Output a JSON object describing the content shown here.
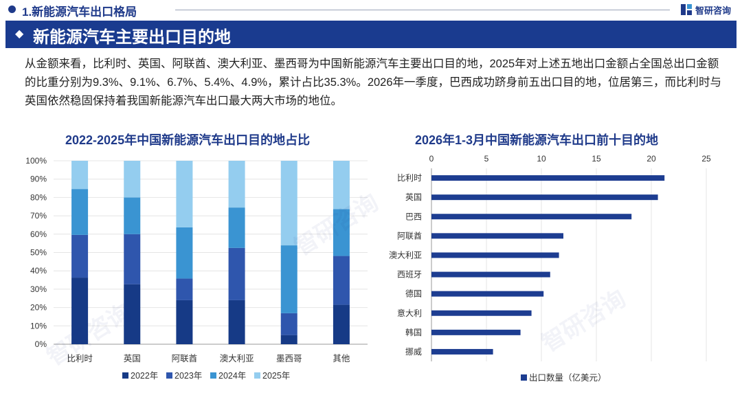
{
  "header": {
    "section_title": "1.新能源汽车出口格局",
    "logo_text": "智研咨询",
    "banner_title": "新能源汽车主要出口目的地"
  },
  "paragraph": "从金额来看，比利时、英国、阿联酋、澳大利亚、墨西哥为中国新能源汽车主要出口目的地，2025年对上述五地出口金额占全国总出口金额的比重分别为9.3%、9.1%、6.7%、5.4%、4.9%，累计占比35.3%。2026年一季度，巴西成功跻身前五出口目的地，位居第三，而比利时与英国依然稳固保持着我国新能源汽车出口最大两大市场的地位。",
  "colors": {
    "brand": "#1a3b8f",
    "s2022": "#163a86",
    "s2023": "#2f56ad",
    "s2024": "#3a94d2",
    "s2025": "#94cdef",
    "bar": "#1d3d91"
  },
  "chart_data": [
    {
      "type": "bar",
      "stacked": true,
      "title": "2022-2025年中国新能源汽车出口目的地占比",
      "categories": [
        "比利时",
        "英国",
        "阿联酋",
        "澳大利亚",
        "墨西哥",
        "其他"
      ],
      "series": [
        {
          "name": "2022年",
          "values": [
            36.3,
            32.7,
            24.0,
            24.0,
            5.0,
            21.5
          ]
        },
        {
          "name": "2023年",
          "values": [
            23.3,
            27.3,
            11.8,
            28.5,
            11.9,
            26.6
          ]
        },
        {
          "name": "2024年",
          "values": [
            25.0,
            20.0,
            27.9,
            22.0,
            37.0,
            25.5
          ]
        },
        {
          "name": "2025年",
          "values": [
            15.4,
            20.0,
            36.3,
            25.5,
            46.1,
            26.4
          ]
        }
      ],
      "y_ticks": [
        "0%",
        "10%",
        "20%",
        "30%",
        "40%",
        "50%",
        "60%",
        "70%",
        "80%",
        "90%",
        "100%"
      ],
      "ylim": [
        0,
        100
      ],
      "legend": "bottom"
    },
    {
      "type": "bar",
      "orientation": "horizontal",
      "title": "2026年1-3月中国新能源汽车出口前十目的地",
      "categories": [
        "比利时",
        "英国",
        "巴西",
        "阿联酋",
        "澳大利亚",
        "西班牙",
        "德国",
        "意大利",
        "韩国",
        "挪威"
      ],
      "series": [
        {
          "name": "出口数量（亿美元）",
          "values": [
            21.2,
            20.6,
            18.2,
            12.0,
            11.6,
            10.8,
            10.2,
            9.1,
            8.1,
            5.6
          ]
        }
      ],
      "x_ticks": [
        "0",
        "5",
        "10",
        "15",
        "20",
        "25"
      ],
      "xlim": [
        0,
        25
      ],
      "legend": "bottom"
    }
  ]
}
